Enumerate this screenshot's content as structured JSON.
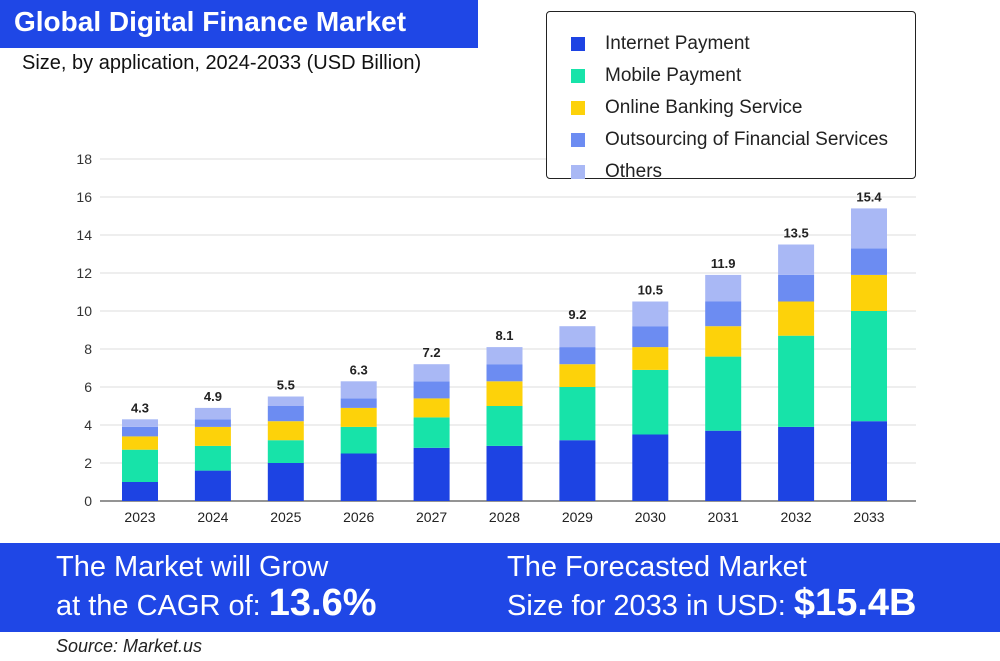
{
  "header": {
    "title": "Global Digital Finance Market",
    "subtitle": "Size, by application, 2024-2033 (USD Billion)"
  },
  "colors": {
    "brand": "#1f47e6",
    "internet_payment": "#1d43e3",
    "mobile_payment": "#17e3a9",
    "online_banking": "#fdd20a",
    "outsourcing": "#6c8cf2",
    "others": "#a9b8f5"
  },
  "chart_data": {
    "type": "bar",
    "stacked": true,
    "categories": [
      "2023",
      "2024",
      "2025",
      "2026",
      "2027",
      "2028",
      "2029",
      "2030",
      "2031",
      "2032",
      "2033"
    ],
    "series": [
      {
        "name": "Internet Payment",
        "color": "#1d43e3",
        "values": [
          1.0,
          1.6,
          2.0,
          2.5,
          2.8,
          2.9,
          3.2,
          3.5,
          3.7,
          3.9,
          4.2
        ]
      },
      {
        "name": "Mobile Payment",
        "color": "#17e3a9",
        "values": [
          1.7,
          1.3,
          1.2,
          1.4,
          1.6,
          2.1,
          2.8,
          3.4,
          3.9,
          4.8,
          5.8
        ]
      },
      {
        "name": "Online Banking Service",
        "color": "#fdd20a",
        "values": [
          0.7,
          1.0,
          1.0,
          1.0,
          1.0,
          1.3,
          1.2,
          1.2,
          1.6,
          1.8,
          1.9
        ]
      },
      {
        "name": "Outsourcing of Financial Services",
        "color": "#6c8cf2",
        "values": [
          0.5,
          0.4,
          0.8,
          0.5,
          0.9,
          0.9,
          0.9,
          1.1,
          1.3,
          1.4,
          1.4
        ]
      },
      {
        "name": "Others",
        "color": "#a9b8f5",
        "values": [
          0.4,
          0.6,
          0.5,
          0.9,
          0.9,
          0.9,
          1.1,
          1.3,
          1.4,
          1.6,
          2.1
        ]
      }
    ],
    "totals": [
      "4.3",
      "4.9",
      "5.5",
      "6.3",
      "7.2",
      "8.1",
      "9.2",
      "10.5",
      "11.9",
      "13.5",
      "15.4"
    ],
    "yticks": [
      0,
      2,
      4,
      6,
      8,
      10,
      12,
      14,
      16,
      18
    ],
    "ylim": [
      0,
      18
    ],
    "grid": true,
    "legend_position": "top-right",
    "xlabel": "",
    "ylabel": ""
  },
  "legend_items": [
    {
      "label": "Internet Payment",
      "color": "#1d43e3"
    },
    {
      "label": "Mobile Payment",
      "color": "#17e3a9"
    },
    {
      "label": "Online Banking Service",
      "color": "#fdd20a"
    },
    {
      "label": "Outsourcing of Financial Services",
      "color": "#6c8cf2"
    },
    {
      "label": "Others",
      "color": "#a9b8f5"
    }
  ],
  "banner": {
    "cagr_line1": "The Market will Grow",
    "cagr_line2": "at the CAGR of:",
    "cagr_value": "13.6%",
    "forecast_line1": "The Forecasted Market",
    "forecast_line2": "Size for 2033 in USD:",
    "forecast_value": "$15.4B"
  },
  "source": "Source: Market.us"
}
